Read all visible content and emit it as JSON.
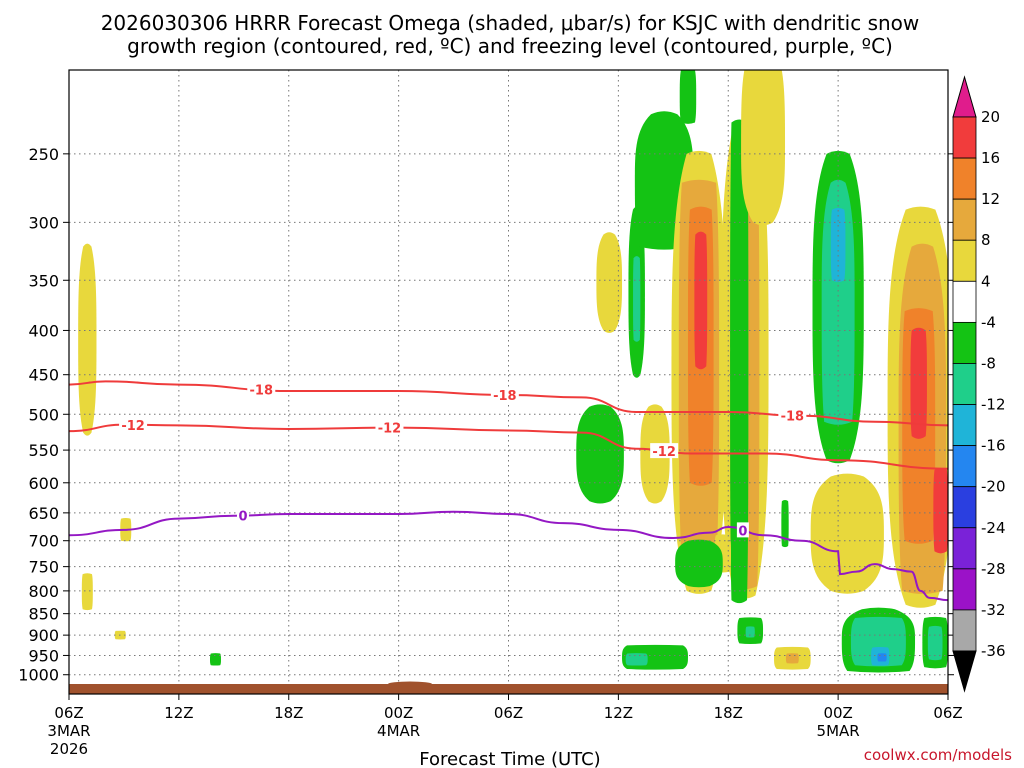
{
  "title_line1": "2026030306 HRRR Forecast Omega (shaded, μbar/s) for KSJC with dendritic snow",
  "title_line2": "growth region (contoured, red, ºC) and freezing level (contoured, purple, ºC)",
  "credit": "coolwx.com/models",
  "chart_data": {
    "type": "contour",
    "xlabel": "Forecast Time (UTC)",
    "ylabel": "",
    "x_range_hours": [
      0,
      48
    ],
    "y_scale": "log-pressure",
    "y_range_hpa": [
      1025,
      200
    ],
    "grid": true,
    "x_ticks": [
      {
        "hour": 0,
        "label": "06Z",
        "sub1": "3MAR",
        "sub2": "2026"
      },
      {
        "hour": 6,
        "label": "12Z",
        "sub1": "",
        "sub2": ""
      },
      {
        "hour": 12,
        "label": "18Z",
        "sub1": "",
        "sub2": ""
      },
      {
        "hour": 18,
        "label": "00Z",
        "sub1": "4MAR",
        "sub2": ""
      },
      {
        "hour": 24,
        "label": "06Z",
        "sub1": "",
        "sub2": ""
      },
      {
        "hour": 30,
        "label": "12Z",
        "sub1": "",
        "sub2": ""
      },
      {
        "hour": 36,
        "label": "18Z",
        "sub1": "",
        "sub2": ""
      },
      {
        "hour": 42,
        "label": "00Z",
        "sub1": "5MAR",
        "sub2": ""
      },
      {
        "hour": 48,
        "label": "06Z",
        "sub1": "",
        "sub2": ""
      }
    ],
    "y_ticks": [
      250,
      300,
      350,
      400,
      450,
      500,
      550,
      600,
      650,
      700,
      750,
      800,
      850,
      900,
      950,
      1000
    ],
    "colorbar": {
      "labels": [
        "20",
        "16",
        "12",
        "8",
        "4",
        "-4",
        "-8",
        "-12",
        "-16",
        "-20",
        "-24",
        "-28",
        "-32",
        "-36"
      ],
      "levels": [
        {
          "from": 16,
          "to": 20,
          "color": "#f13c3c"
        },
        {
          "from": 12,
          "to": 16,
          "color": "#f0822a"
        },
        {
          "from": 8,
          "to": 12,
          "color": "#e6a93c"
        },
        {
          "from": 4,
          "to": 8,
          "color": "#e8d83c"
        },
        {
          "from": -4,
          "to": 4,
          "color": "#ffffff"
        },
        {
          "from": -8,
          "to": -4,
          "color": "#14c314"
        },
        {
          "from": -12,
          "to": -8,
          "color": "#1fcf8a"
        },
        {
          "from": -16,
          "to": -12,
          "color": "#1fb4d8"
        },
        {
          "from": -20,
          "to": -16,
          "color": "#2486f0"
        },
        {
          "from": -24,
          "to": -20,
          "color": "#2a3fe0"
        },
        {
          "from": -28,
          "to": -24,
          "color": "#7a22d8"
        },
        {
          "from": -32,
          "to": -28,
          "color": "#9b12c8"
        },
        {
          "from": -36,
          "to": -32,
          "color": "#a8a8a8"
        }
      ],
      "top_color": "#e01c8c",
      "bottom_color": "#000000"
    },
    "contours": [
      {
        "name": "dgz_-18",
        "label": "-18",
        "color": "#ef3b3b",
        "label_hours": [
          10.5,
          23.8,
          39.5
        ],
        "points": [
          [
            0,
            462
          ],
          [
            2,
            458
          ],
          [
            6,
            462
          ],
          [
            12,
            470
          ],
          [
            18,
            470
          ],
          [
            24,
            475
          ],
          [
            28,
            478
          ],
          [
            31,
            497
          ],
          [
            36,
            497
          ],
          [
            40,
            502
          ],
          [
            44,
            510
          ],
          [
            48,
            515
          ]
        ]
      },
      {
        "name": "dgz_-12",
        "label": "-12",
        "color": "#ef3b3b",
        "label_hours": [
          3.5,
          17.5,
          32.5
        ],
        "points": [
          [
            0,
            523
          ],
          [
            3,
            514
          ],
          [
            6,
            515
          ],
          [
            12,
            520
          ],
          [
            18,
            518
          ],
          [
            24,
            522
          ],
          [
            28,
            525
          ],
          [
            31,
            548
          ],
          [
            34,
            555
          ],
          [
            38,
            555
          ],
          [
            42,
            565
          ],
          [
            48,
            578
          ]
        ]
      },
      {
        "name": "freezing_level",
        "label": "0",
        "color": "#9418c4",
        "label_hours": [
          9.5,
          36.8
        ],
        "points": [
          [
            0,
            690
          ],
          [
            3,
            680
          ],
          [
            6,
            660
          ],
          [
            9,
            655
          ],
          [
            12,
            652
          ],
          [
            18,
            652
          ],
          [
            21,
            648
          ],
          [
            24,
            652
          ],
          [
            27,
            668
          ],
          [
            30,
            680
          ],
          [
            33,
            695
          ],
          [
            35,
            685
          ],
          [
            36,
            675
          ],
          [
            38,
            690
          ],
          [
            40,
            700
          ],
          [
            42,
            720
          ],
          [
            42.1,
            765
          ],
          [
            43,
            760
          ],
          [
            44,
            745
          ],
          [
            45,
            755
          ],
          [
            46,
            760
          ],
          [
            46.5,
            800
          ],
          [
            47,
            815
          ],
          [
            48,
            820
          ]
        ]
      }
    ],
    "omega_regions": [
      {
        "value": 5,
        "hour": 1.0,
        "hw": 0.5,
        "p_top": 320,
        "p_bot": 525,
        "taper_top": true,
        "taper_bot": true
      },
      {
        "value": 5,
        "hour": 3.1,
        "hw": 0.3,
        "p_top": 660,
        "p_bot": 700
      },
      {
        "value": 5,
        "hour": 1.0,
        "hw": 0.3,
        "p_top": 765,
        "p_bot": 840
      },
      {
        "value": 5,
        "hour": 2.8,
        "hw": 0.3,
        "p_top": 890,
        "p_bot": 910
      },
      {
        "value": -6,
        "hour": 8.0,
        "hw": 0.3,
        "p_top": 945,
        "p_bot": 975
      },
      {
        "value": 5,
        "hour": 29.5,
        "hw": 0.7,
        "p_top": 310,
        "p_bot": 400,
        "taper_top": true,
        "taper_bot": true
      },
      {
        "value": -6,
        "hour": 31.0,
        "hw": 0.45,
        "p_top": 290,
        "p_bot": 450,
        "taper_top": true,
        "taper_bot": true
      },
      {
        "value": -10,
        "hour": 31.0,
        "hw": 0.2,
        "p_top": 330,
        "p_bot": 410
      },
      {
        "value": -6,
        "hour": 29.0,
        "hw": 1.3,
        "p_top": 490,
        "p_bot": 630,
        "taper_top": true,
        "taper_bot": true
      },
      {
        "value": 5,
        "hour": 32.0,
        "hw": 0.8,
        "p_top": 490,
        "p_bot": 630,
        "taper_top": true,
        "taper_bot": true
      },
      {
        "value": -6,
        "hour": 32.5,
        "hw": 1.6,
        "p_top": 225,
        "p_bot": 320,
        "taper_top": true
      },
      {
        "value": 5,
        "hour": 34.4,
        "hw": 1.5,
        "p_top": 250,
        "p_bot": 800,
        "taper_top": true,
        "taper_bot": true
      },
      {
        "value": 10,
        "hour": 34.4,
        "hw": 1.1,
        "p_top": 270,
        "p_bot": 740
      },
      {
        "value": 14,
        "hour": 34.5,
        "hw": 0.7,
        "p_top": 290,
        "p_bot": 600
      },
      {
        "value": 18,
        "hour": 34.5,
        "hw": 0.35,
        "p_top": 310,
        "p_bot": 440
      },
      {
        "value": -6,
        "hour": 33.8,
        "hw": 0.45,
        "p_top": 200,
        "p_bot": 230
      },
      {
        "value": 5,
        "hour": 36.9,
        "hw": 1.3,
        "p_top": 230,
        "p_bot": 810,
        "taper_top": true,
        "taper_bot": true
      },
      {
        "value": 10,
        "hour": 36.9,
        "hw": 0.8,
        "p_top": 250,
        "p_bot": 790
      },
      {
        "value": -6,
        "hour": 36.6,
        "hw": 0.5,
        "p_top": 230,
        "p_bot": 820
      },
      {
        "value": 5,
        "hour": 37.9,
        "hw": 1.2,
        "p_top": 200,
        "p_bot": 300,
        "taper_bot": true
      },
      {
        "value": -6,
        "hour": 39.1,
        "hw": 0.2,
        "p_top": 630,
        "p_bot": 710
      },
      {
        "value": 5,
        "hour": 35.7,
        "hw": 0.45,
        "p_top": 690,
        "p_bot": 760
      },
      {
        "value": -6,
        "hour": 34.4,
        "hw": 1.3,
        "p_top": 700,
        "p_bot": 790,
        "taper_top": true,
        "taper_bot": true
      },
      {
        "value": -6,
        "hour": 37.2,
        "hw": 0.7,
        "p_top": 860,
        "p_bot": 920
      },
      {
        "value": -10,
        "hour": 37.2,
        "hw": 0.25,
        "p_top": 880,
        "p_bot": 905
      },
      {
        "value": 5,
        "hour": 39.5,
        "hw": 1.0,
        "p_top": 930,
        "p_bot": 985
      },
      {
        "value": 10,
        "hour": 39.5,
        "hw": 0.35,
        "p_top": 945,
        "p_bot": 970
      },
      {
        "value": 5,
        "hour": 42.5,
        "hw": 2.0,
        "p_top": 590,
        "p_bot": 800,
        "taper_top": true,
        "taper_bot": true
      },
      {
        "value": -6,
        "hour": 32.0,
        "hw": 1.8,
        "p_top": 925,
        "p_bot": 985
      },
      {
        "value": -10,
        "hour": 31.0,
        "hw": 0.6,
        "p_top": 945,
        "p_bot": 975
      },
      {
        "value": -6,
        "hour": 42.0,
        "hw": 1.4,
        "p_top": 250,
        "p_bot": 565,
        "taper_top": true,
        "taper_bot": true
      },
      {
        "value": -10,
        "hour": 42.0,
        "hw": 0.9,
        "p_top": 270,
        "p_bot": 510,
        "taper_top": true
      },
      {
        "value": -14,
        "hour": 42.0,
        "hw": 0.4,
        "p_top": 290,
        "p_bot": 350
      },
      {
        "value": -6,
        "hour": 44.2,
        "hw": 2.0,
        "p_top": 840,
        "p_bot": 990,
        "taper_top": true
      },
      {
        "value": -10,
        "hour": 44.2,
        "hw": 1.5,
        "p_top": 860,
        "p_bot": 975
      },
      {
        "value": -14,
        "hour": 44.3,
        "hw": 0.5,
        "p_top": 930,
        "p_bot": 975
      },
      {
        "value": -18,
        "hour": 44.4,
        "hw": 0.25,
        "p_top": 945,
        "p_bot": 965
      },
      {
        "value": -6,
        "hour": 47.3,
        "hw": 0.7,
        "p_top": 860,
        "p_bot": 980
      },
      {
        "value": -10,
        "hour": 47.3,
        "hw": 0.4,
        "p_top": 880,
        "p_bot": 960
      },
      {
        "value": 5,
        "hour": 46.5,
        "hw": 1.8,
        "p_top": 290,
        "p_bot": 830,
        "taper_top": true,
        "taper_bot": true
      },
      {
        "value": 10,
        "hour": 46.6,
        "hw": 1.3,
        "p_top": 320,
        "p_bot": 800,
        "taper_top": true
      },
      {
        "value": 14,
        "hour": 46.4,
        "hw": 0.9,
        "p_top": 380,
        "p_bot": 700
      },
      {
        "value": 18,
        "hour": 46.4,
        "hw": 0.45,
        "p_top": 400,
        "p_bot": 530
      },
      {
        "value": 18,
        "hour": 47.6,
        "hw": 0.4,
        "p_top": 580,
        "p_bot": 720
      }
    ]
  }
}
